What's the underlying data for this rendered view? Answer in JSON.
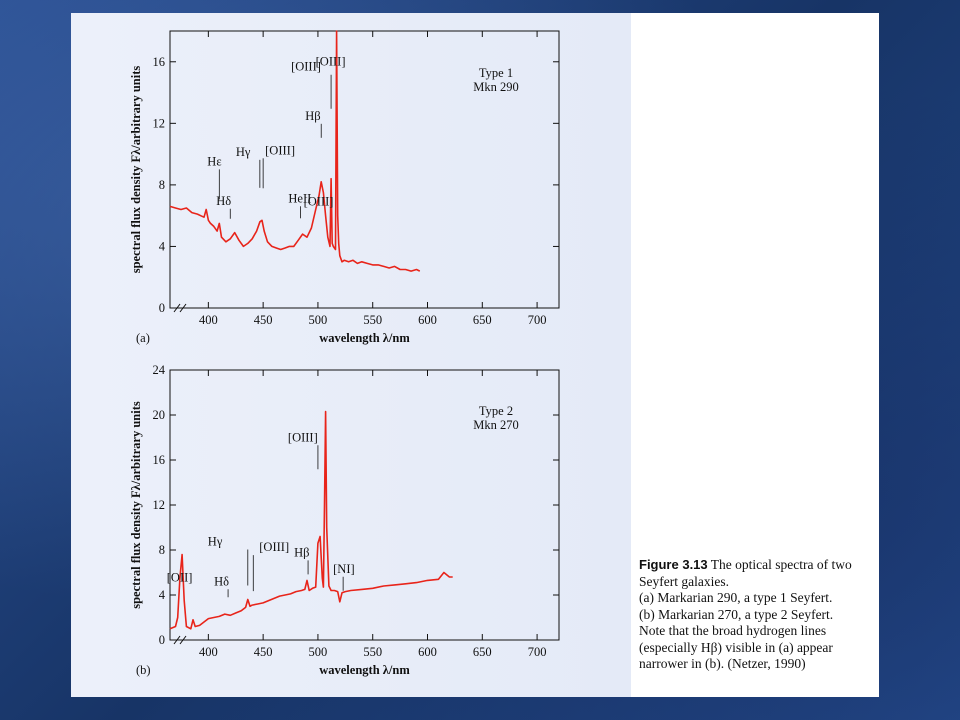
{
  "colors": {
    "spectrum": "#e8241a",
    "axis": "#111111",
    "slide_bg": "#1e3f7a"
  },
  "caption": {
    "figure_number": "Figure 3.13",
    "title": "The optical spectra of two Seyfert galaxies.",
    "line_a": "(a) Markarian 290, a type 1 Seyfert.",
    "line_b": "(b) Markarian 270, a type 2 Seyfert.",
    "note": "Note that the broad hydrogen lines (especially Hβ) visible in (a) appear narrower in (b). (Netzer, 1990)"
  },
  "chart_data": [
    {
      "type": "line",
      "panel_label": "(a)",
      "xlabel": "wavelength λ/nm",
      "ylabel": "spectral flux density Fλ/arbitrary units",
      "xlim": [
        365,
        720
      ],
      "ylim": [
        0,
        18
      ],
      "x_ticks": [
        400,
        450,
        500,
        550,
        600,
        650,
        700
      ],
      "y_ticks": [
        0,
        4,
        8,
        12,
        16
      ],
      "axis_break": true,
      "legend_text": [
        "Type 1",
        "Mkn 290"
      ],
      "legend_placement": "top-right",
      "series": [
        {
          "x": [
            365,
            370,
            375,
            380,
            385,
            390,
            393,
            396,
            398,
            400,
            402,
            405,
            408,
            410,
            412,
            416,
            420,
            424,
            428,
            432,
            436,
            440,
            444,
            447,
            449,
            451,
            454,
            458,
            462,
            466,
            470,
            474,
            478,
            482,
            486,
            490,
            494,
            498,
            501,
            503,
            505,
            507,
            509,
            511,
            512,
            513,
            514,
            516,
            517,
            518,
            519,
            520,
            522,
            524,
            528,
            532,
            536,
            540,
            545,
            550,
            555,
            560,
            565,
            570,
            575,
            580,
            585,
            590,
            593
          ],
          "y": [
            6.6,
            6.5,
            6.4,
            6.5,
            6.2,
            6.1,
            6.0,
            5.9,
            6.4,
            5.7,
            5.5,
            5.3,
            5.0,
            5.5,
            4.6,
            4.3,
            4.5,
            4.9,
            4.4,
            4.0,
            4.2,
            4.5,
            5.0,
            5.6,
            5.7,
            5.0,
            4.3,
            4.0,
            3.9,
            3.8,
            3.9,
            4.0,
            4.0,
            4.4,
            4.8,
            4.6,
            5.2,
            6.4,
            7.3,
            8.2,
            7.5,
            6.0,
            4.6,
            4.0,
            8.4,
            4.2,
            4.0,
            3.8,
            18.0,
            6.0,
            4.2,
            3.4,
            3.0,
            3.1,
            3.0,
            3.1,
            2.9,
            3.0,
            2.9,
            2.8,
            2.8,
            2.7,
            2.6,
            2.7,
            2.5,
            2.5,
            2.4,
            2.5,
            2.4
          ]
        }
      ],
      "annotations": [
        {
          "text": "Hε",
          "at_x": 410
        },
        {
          "text": "Hδ",
          "at_x": 420
        },
        {
          "text": "Hγ",
          "at_x": 447
        },
        {
          "text": "[OIII]",
          "at_x": 450
        },
        {
          "text": "HeII",
          "at_x": 484
        },
        {
          "text": "Hβ",
          "at_x": 503
        },
        {
          "text": "[OIII]",
          "at_x": 512
        },
        {
          "text": "[OIII]",
          "at_x": 518
        }
      ]
    },
    {
      "type": "line",
      "panel_label": "(b)",
      "xlabel": "wavelength λ/nm",
      "ylabel": "spectral flux density Fλ/arbitrary units",
      "xlim": [
        365,
        720
      ],
      "ylim": [
        0,
        24
      ],
      "x_ticks": [
        400,
        450,
        500,
        550,
        600,
        650,
        700
      ],
      "y_ticks": [
        0,
        4,
        8,
        12,
        16,
        20,
        24
      ],
      "axis_break": true,
      "legend_text": [
        "Type 2",
        "Mkn 270"
      ],
      "legend_placement": "top-right",
      "series": [
        {
          "x": [
            365,
            370,
            372,
            374,
            376,
            378,
            380,
            384,
            386,
            388,
            392,
            396,
            400,
            405,
            410,
            415,
            420,
            425,
            430,
            434,
            436,
            438,
            440,
            445,
            450,
            455,
            460,
            465,
            470,
            475,
            480,
            485,
            488,
            490,
            492,
            495,
            498,
            500,
            502,
            504,
            505,
            506,
            507,
            508,
            510,
            512,
            515,
            518,
            520,
            522,
            525,
            530,
            540,
            550,
            560,
            570,
            580,
            590,
            600,
            610,
            615,
            620,
            623
          ],
          "y": [
            1.0,
            1.2,
            2.0,
            5.5,
            7.6,
            3.5,
            1.2,
            1.0,
            1.8,
            1.2,
            1.3,
            1.6,
            1.9,
            2.0,
            2.1,
            2.3,
            2.2,
            2.4,
            2.6,
            2.9,
            3.6,
            3.0,
            3.1,
            3.2,
            3.3,
            3.5,
            3.7,
            3.9,
            4.0,
            4.1,
            4.3,
            4.4,
            4.5,
            5.3,
            4.4,
            4.6,
            4.7,
            8.6,
            9.2,
            5.5,
            4.7,
            12.0,
            20.3,
            10.0,
            4.8,
            4.4,
            4.4,
            4.3,
            3.4,
            4.2,
            4.3,
            4.4,
            4.5,
            4.6,
            4.8,
            4.9,
            5.0,
            5.1,
            5.3,
            5.4,
            6.0,
            5.6,
            5.6
          ]
        }
      ],
      "annotations": [
        {
          "text": "[OII]",
          "at_x": 373
        },
        {
          "text": "Hδ",
          "at_x": 418
        },
        {
          "text": "Hγ",
          "at_x": 436
        },
        {
          "text": "[OIII]",
          "at_x": 441
        },
        {
          "text": "Hβ",
          "at_x": 491
        },
        {
          "text": "[OIII]",
          "at_x": 500
        },
        {
          "text": "[NI]",
          "at_x": 523
        },
        {
          "text": "[OIII]",
          "at_x": 507
        }
      ]
    }
  ]
}
